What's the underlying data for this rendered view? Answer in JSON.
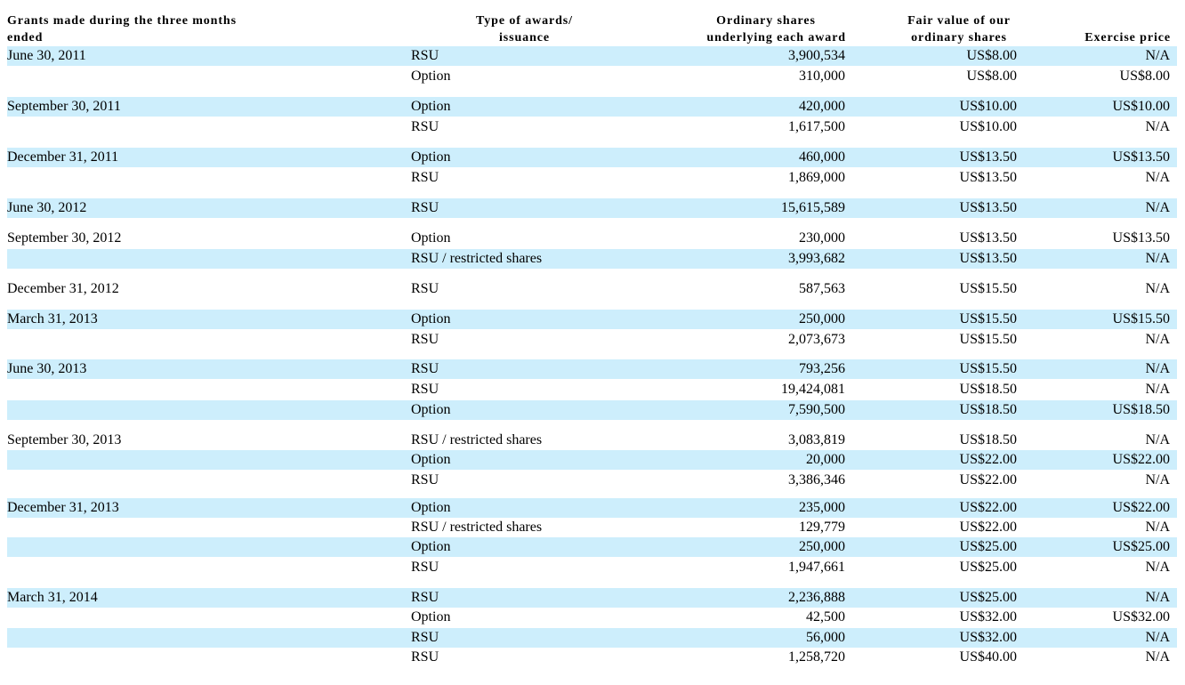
{
  "headers": {
    "period_line1": "Grants made during the three months",
    "period_line2": "ended",
    "type_line1": "Type of awards/",
    "type_line2": "issuance",
    "shares_line1": "Ordinary shares",
    "shares_line2": "underlying each award",
    "fair_line1": "Fair value of our",
    "fair_line2": "ordinary shares",
    "exercise": "Exercise price"
  },
  "rows": [
    {
      "period": "June 30, 2011",
      "type": "RSU",
      "shares": "3,900,534",
      "fair_value": "US$8.00",
      "exercise": "N/A",
      "shaded": true
    },
    {
      "period": "",
      "type": "Option",
      "shares": "310,000",
      "fair_value": "US$8.00",
      "exercise": "US$8.00",
      "shaded": false
    },
    {
      "period": "September 30, 2011",
      "type": "Option",
      "shares": "420,000",
      "fair_value": "US$10.00",
      "exercise": "US$10.00",
      "shaded": true
    },
    {
      "period": "",
      "type": "RSU",
      "shares": "1,617,500",
      "fair_value": "US$10.00",
      "exercise": "N/A",
      "shaded": false
    },
    {
      "period": "December 31, 2011",
      "type": "Option",
      "shares": "460,000",
      "fair_value": "US$13.50",
      "exercise": "US$13.50",
      "shaded": true
    },
    {
      "period": "",
      "type": "RSU",
      "shares": "1,869,000",
      "fair_value": "US$13.50",
      "exercise": "N/A",
      "shaded": false
    },
    {
      "period": "June 30, 2012",
      "type": "RSU",
      "shares": "15,615,589",
      "fair_value": "US$13.50",
      "exercise": "N/A",
      "shaded": true
    },
    {
      "period": "September 30, 2012",
      "type": "Option",
      "shares": "230,000",
      "fair_value": "US$13.50",
      "exercise": "US$13.50",
      "shaded": false
    },
    {
      "period": "",
      "type": "RSU / restricted shares",
      "shares": "3,993,682",
      "fair_value": "US$13.50",
      "exercise": "N/A",
      "shaded": true
    },
    {
      "period": "December 31, 2012",
      "type": "RSU",
      "shares": "587,563",
      "fair_value": "US$15.50",
      "exercise": "N/A",
      "shaded": false
    },
    {
      "period": "March 31, 2013",
      "type": "Option",
      "shares": "250,000",
      "fair_value": "US$15.50",
      "exercise": "US$15.50",
      "shaded": true
    },
    {
      "period": "",
      "type": "RSU",
      "shares": "2,073,673",
      "fair_value": "US$15.50",
      "exercise": "N/A",
      "shaded": false
    },
    {
      "period": "June 30, 2013",
      "type": "RSU",
      "shares": "793,256",
      "fair_value": "US$15.50",
      "exercise": "N/A",
      "shaded": true
    },
    {
      "period": "",
      "type": "RSU",
      "shares": "19,424,081",
      "fair_value": "US$18.50",
      "exercise": "N/A",
      "shaded": false
    },
    {
      "period": "",
      "type": "Option",
      "shares": "7,590,500",
      "fair_value": "US$18.50",
      "exercise": "US$18.50",
      "shaded": true
    },
    {
      "period": "September 30, 2013",
      "type": "RSU / restricted shares",
      "shares": "3,083,819",
      "fair_value": "US$18.50",
      "exercise": "N/A",
      "shaded": false
    },
    {
      "period": "",
      "type": "Option",
      "shares": "20,000",
      "fair_value": "US$22.00",
      "exercise": "US$22.00",
      "shaded": true
    },
    {
      "period": "",
      "type": "RSU",
      "shares": "3,386,346",
      "fair_value": "US$22.00",
      "exercise": "N/A",
      "shaded": false
    },
    {
      "period": "December 31, 2013",
      "type": "Option",
      "shares": "235,000",
      "fair_value": "US$22.00",
      "exercise": "US$22.00",
      "shaded": true
    },
    {
      "period": "",
      "type": "RSU / restricted shares",
      "shares": "129,779",
      "fair_value": "US$22.00",
      "exercise": "N/A",
      "shaded": false
    },
    {
      "period": "",
      "type": "Option",
      "shares": "250,000",
      "fair_value": "US$25.00",
      "exercise": "US$25.00",
      "shaded": true
    },
    {
      "period": "",
      "type": "RSU",
      "shares": "1,947,661",
      "fair_value": "US$25.00",
      "exercise": "N/A",
      "shaded": false
    },
    {
      "period": "March 31, 2014",
      "type": "RSU",
      "shares": "2,236,888",
      "fair_value": "US$25.00",
      "exercise": "N/A",
      "shaded": true
    },
    {
      "period": "",
      "type": "Option",
      "shares": "42,500",
      "fair_value": "US$32.00",
      "exercise": "US$32.00",
      "shaded": false
    },
    {
      "period": "",
      "type": "RSU",
      "shares": "56,000",
      "fair_value": "US$32.00",
      "exercise": "N/A",
      "shaded": true
    },
    {
      "period": "",
      "type": "RSU",
      "shares": "1,258,720",
      "fair_value": "US$40.00",
      "exercise": "N/A",
      "shaded": false
    }
  ]
}
